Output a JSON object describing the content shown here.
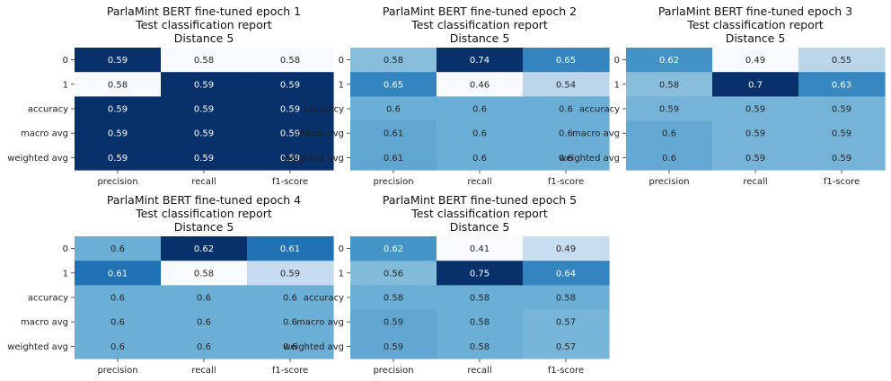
{
  "chart_data": [
    {
      "type": "heatmap",
      "title_lines": [
        "ParlaMint BERT fine-tuned epoch 1",
        "Test classification report",
        "Distance 5"
      ],
      "rows": [
        "0",
        "1",
        "accuracy",
        "macro avg",
        "weighted avg"
      ],
      "columns": [
        "precision",
        "recall",
        "f1-score"
      ],
      "values": [
        [
          0.59,
          0.58,
          0.58
        ],
        [
          0.58,
          0.59,
          0.59
        ],
        [
          0.59,
          0.59,
          0.59
        ],
        [
          0.59,
          0.59,
          0.59
        ],
        [
          0.59,
          0.59,
          0.59
        ]
      ],
      "colorbar": false
    },
    {
      "type": "heatmap",
      "title_lines": [
        "ParlaMint BERT fine-tuned epoch 2",
        "Test classification report",
        "Distance 5"
      ],
      "rows": [
        "0",
        "1",
        "accuracy",
        "macro avg",
        "weighted avg"
      ],
      "columns": [
        "precision",
        "recall",
        "f1-score"
      ],
      "values": [
        [
          0.58,
          0.74,
          0.65
        ],
        [
          0.65,
          0.46,
          0.54
        ],
        [
          0.6,
          0.6,
          0.6
        ],
        [
          0.61,
          0.6,
          0.6
        ],
        [
          0.61,
          0.6,
          0.6
        ]
      ],
      "colorbar": false
    },
    {
      "type": "heatmap",
      "title_lines": [
        "ParlaMint BERT fine-tuned epoch 3",
        "Test classification report",
        "Distance 5"
      ],
      "rows": [
        "0",
        "1",
        "accuracy",
        "macro avg",
        "weighted avg"
      ],
      "columns": [
        "precision",
        "recall",
        "f1-score"
      ],
      "values": [
        [
          0.62,
          0.49,
          0.55
        ],
        [
          0.58,
          0.7,
          0.63
        ],
        [
          0.59,
          0.59,
          0.59
        ],
        [
          0.6,
          0.59,
          0.59
        ],
        [
          0.6,
          0.59,
          0.59
        ]
      ],
      "colorbar": false
    },
    {
      "type": "heatmap",
      "title_lines": [
        "ParlaMint BERT fine-tuned epoch 4",
        "Test classification report",
        "Distance 5"
      ],
      "rows": [
        "0",
        "1",
        "accuracy",
        "macro avg",
        "weighted avg"
      ],
      "columns": [
        "precision",
        "recall",
        "f1-score"
      ],
      "values": [
        [
          0.6,
          0.62,
          0.61
        ],
        [
          0.61,
          0.58,
          0.59
        ],
        [
          0.6,
          0.6,
          0.6
        ],
        [
          0.6,
          0.6,
          0.6
        ],
        [
          0.6,
          0.6,
          0.6
        ]
      ],
      "colorbar": false
    },
    {
      "type": "heatmap",
      "title_lines": [
        "ParlaMint BERT fine-tuned epoch 5",
        "Test classification report",
        "Distance 5"
      ],
      "rows": [
        "0",
        "1",
        "accuracy",
        "macro avg",
        "weighted avg"
      ],
      "columns": [
        "precision",
        "recall",
        "f1-score"
      ],
      "values": [
        [
          0.62,
          0.41,
          0.49
        ],
        [
          0.56,
          0.75,
          0.64
        ],
        [
          0.58,
          0.58,
          0.58
        ],
        [
          0.59,
          0.58,
          0.57
        ],
        [
          0.59,
          0.58,
          0.57
        ]
      ],
      "colorbar": false
    }
  ],
  "colormap": {
    "name": "Blues",
    "stops": [
      "#f7fbff",
      "#deebf7",
      "#c6dbef",
      "#9ecae1",
      "#6baed6",
      "#4292c6",
      "#2171b5",
      "#08519c",
      "#08306b"
    ]
  }
}
